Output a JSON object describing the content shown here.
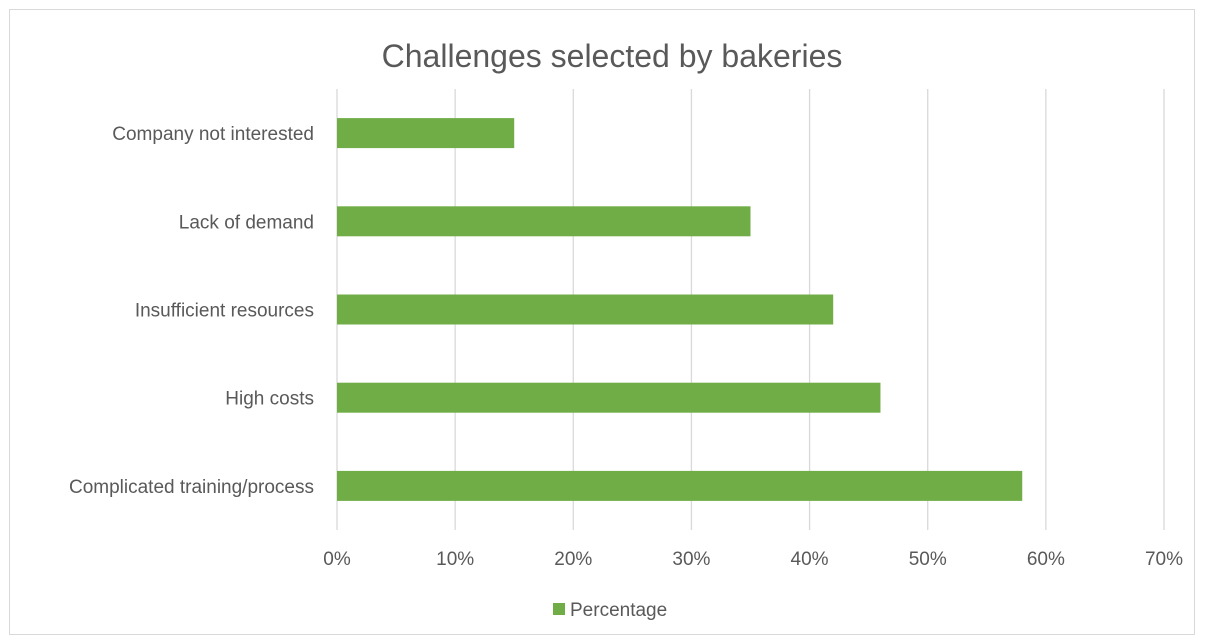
{
  "chart_data": {
    "type": "bar",
    "orientation": "horizontal",
    "title": "Challenges selected by bakeries",
    "categories": [
      "Company not interested",
      "Lack of demand",
      "Insufficient resources",
      "High costs",
      "Complicated training/process"
    ],
    "series": [
      {
        "name": "Percentage",
        "values": [
          15,
          35,
          42,
          46,
          58
        ],
        "color": "#70ad47"
      }
    ],
    "xlim": [
      0,
      70
    ],
    "ticks": [
      0,
      10,
      20,
      30,
      40,
      50,
      60,
      70
    ],
    "tick_labels": [
      "0%",
      "10%",
      "20%",
      "30%",
      "40%",
      "50%",
      "60%",
      "70%"
    ],
    "grid": true,
    "gridline_color": "#d9d9d9",
    "legend": "bottom",
    "value_unit": "%"
  }
}
